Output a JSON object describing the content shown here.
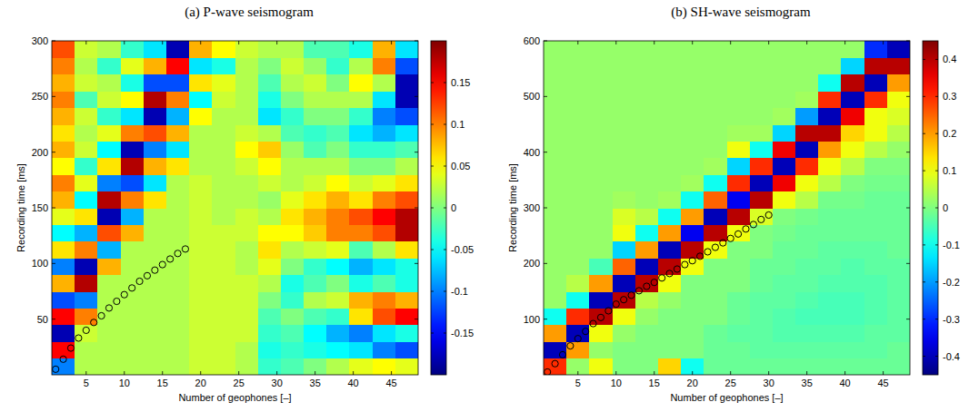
{
  "chart_data": [
    {
      "type": "heatmap",
      "title": "(a) P-wave seismogram",
      "x_label": "Number of geophones [–]",
      "y_label": "Recording time [ms]",
      "xlim": [
        0.5,
        48.5
      ],
      "xticks": [
        5,
        10,
        15,
        20,
        25,
        30,
        35,
        40,
        45
      ],
      "ylim": [
        0,
        300
      ],
      "yticks": [
        50,
        100,
        150,
        200,
        250,
        300
      ],
      "x": [
        2,
        5,
        8,
        11,
        14,
        17,
        20,
        23,
        26,
        29,
        32,
        35,
        38,
        41,
        44,
        47
      ],
      "y": [
        7.5,
        22.5,
        37.5,
        52.5,
        67.5,
        82.5,
        97.5,
        112.5,
        127.5,
        142.5,
        157.5,
        172.5,
        187.5,
        202.5,
        217.5,
        232.5,
        247.5,
        262.5,
        277.5,
        292.5
      ],
      "values": [
        [
          -0.1,
          0.15,
          -0.18,
          0.15,
          -0.12,
          0.08,
          -0.1,
          0.06,
          -0.05,
          0.04,
          0.08,
          0.1,
          0.05,
          0.08,
          0.06,
          0.08,
          0.1,
          0.08,
          0.1,
          0.12
        ],
        [
          0.02,
          0.02,
          0.03,
          0.1,
          -0.1,
          0.18,
          -0.18,
          0.1,
          -0.08,
          0.06,
          -0.05,
          0.04,
          -0.03,
          0.03,
          0.02,
          0.03,
          -0.02,
          0.03,
          0.02,
          0.03
        ],
        [
          0.02,
          0.02,
          0.02,
          0.02,
          0.02,
          0.02,
          0.08,
          -0.08,
          0.12,
          -0.18,
          0.18,
          -0.1,
          0.06,
          -0.05,
          0.04,
          -0.03,
          0.03,
          0.02,
          -0.03,
          0.02
        ],
        [
          0.02,
          0.02,
          0.02,
          0.02,
          0.02,
          0.02,
          0.02,
          0.02,
          0.08,
          -0.08,
          0.1,
          -0.12,
          0.18,
          -0.18,
          0.1,
          -0.06,
          0.05,
          -0.04,
          0.04,
          -0.03
        ],
        [
          0.02,
          0.02,
          0.02,
          0.02,
          0.02,
          0.02,
          0.02,
          0.02,
          0.02,
          0.02,
          0.06,
          -0.06,
          0.08,
          -0.1,
          0.12,
          -0.18,
          0.18,
          -0.12,
          0.08,
          -0.06
        ],
        [
          0.02,
          0.02,
          0.02,
          0.02,
          0.02,
          0.02,
          0.02,
          0.02,
          0.02,
          0.02,
          0.02,
          0.02,
          0.06,
          -0.06,
          0.08,
          -0.08,
          0.1,
          -0.12,
          0.15,
          -0.18
        ],
        [
          0.03,
          0.03,
          0.03,
          0.03,
          0.03,
          0.03,
          0.03,
          0.03,
          0.03,
          0.03,
          0.03,
          0.03,
          0.02,
          0.02,
          0.02,
          0.05,
          -0.05,
          0.06,
          -0.06,
          0.08
        ],
        [
          0.03,
          0.03,
          0.03,
          0.03,
          0.03,
          0.03,
          0.03,
          0.03,
          0.03,
          0.02,
          0.02,
          0.02,
          0.02,
          0.02,
          0.02,
          0.02,
          0.03,
          0.04,
          -0.04,
          0.05
        ],
        [
          0.02,
          0.02,
          0.03,
          0.03,
          0.03,
          0.03,
          0.02,
          0.02,
          0.03,
          0.03,
          0.02,
          0.02,
          0.03,
          0.05,
          0.03,
          0.02,
          0.02,
          0.02,
          0.02,
          0.03
        ],
        [
          -0.03,
          -0.04,
          -0.03,
          -0.02,
          0.0,
          0.02,
          0.04,
          0.06,
          0.05,
          0.02,
          0.01,
          0.03,
          0.05,
          0.07,
          0.02,
          -0.06,
          -0.04,
          -0.02,
          0.0,
          0.02
        ],
        [
          -0.02,
          -0.03,
          -0.02,
          0.0,
          -0.03,
          -0.04,
          0.0,
          0.02,
          0.05,
          0.06,
          0.04,
          0.02,
          0.02,
          0.01,
          -0.02,
          -0.03,
          0.0,
          0.02,
          0.03,
          0.02
        ],
        [
          0.0,
          -0.04,
          -0.05,
          -0.02,
          0.02,
          -0.02,
          -0.03,
          0.03,
          0.07,
          0.08,
          0.06,
          0.03,
          0.02,
          -0.02,
          -0.03,
          0.0,
          0.02,
          0.03,
          0.01,
          -0.02
        ],
        [
          0.02,
          -0.05,
          -0.08,
          -0.03,
          0.03,
          0.0,
          -0.05,
          0.04,
          0.1,
          0.1,
          0.08,
          0.05,
          0.02,
          0.0,
          -0.02,
          0.0,
          0.02,
          0.0,
          -0.03,
          -0.02
        ],
        [
          0.04,
          -0.06,
          -0.1,
          0.06,
          0.08,
          -0.04,
          -0.08,
          -0.02,
          0.1,
          0.12,
          0.06,
          0.03,
          0.0,
          -0.03,
          -0.06,
          -0.03,
          0.02,
          0.05,
          0.02,
          -0.04
        ],
        [
          0.05,
          -0.1,
          -0.06,
          0.12,
          0.1,
          -0.02,
          -0.06,
          0.02,
          0.12,
          0.15,
          0.1,
          0.04,
          0.0,
          -0.03,
          -0.08,
          -0.1,
          -0.06,
          0.02,
          0.1,
          0.08
        ],
        [
          0.04,
          -0.12,
          -0.04,
          0.15,
          0.08,
          -0.04,
          -0.04,
          0.06,
          0.18,
          0.18,
          0.12,
          0.06,
          0.02,
          -0.02,
          -0.06,
          -0.12,
          -0.18,
          -0.18,
          -0.12,
          -0.06
        ]
      ],
      "colorbar": {
        "lim": [
          -0.2,
          0.2
        ],
        "ticks": [
          -0.15,
          -0.1,
          -0.05,
          0,
          0.05,
          0.1,
          0.15
        ]
      },
      "picks": {
        "marker": "circle",
        "color": "#000000",
        "x": [
          1,
          2,
          3,
          4,
          5,
          6,
          7,
          8,
          9,
          10,
          11,
          12,
          13,
          14,
          15,
          16,
          17,
          18
        ],
        "values": [
          5,
          14,
          24,
          33,
          40,
          47,
          53,
          60,
          66,
          72,
          78,
          84,
          89,
          94,
          99,
          104,
          109,
          113
        ]
      }
    },
    {
      "type": "heatmap",
      "title": "(b) SH-wave seismogram",
      "x_label": "Number of geophones [–]",
      "y_label": "Recording time [ms]",
      "xlim": [
        0.5,
        48.5
      ],
      "xticks": [
        5,
        10,
        15,
        20,
        25,
        30,
        35,
        40,
        45
      ],
      "ylim": [
        0,
        600
      ],
      "yticks": [
        100,
        200,
        300,
        400,
        500,
        600
      ],
      "x": [
        2,
        5,
        8,
        11,
        14,
        17,
        20,
        23,
        26,
        29,
        32,
        35,
        38,
        41,
        44,
        47
      ],
      "y": [
        15,
        45,
        75,
        105,
        135,
        165,
        195,
        225,
        255,
        285,
        315,
        345,
        375,
        405,
        435,
        465,
        495,
        525,
        555,
        585
      ],
      "values": [
        [
          0.3,
          -0.4,
          0.2,
          -0.1,
          0.02,
          0.02,
          0.02,
          0.02,
          0.02,
          0.02,
          0.02,
          0.02,
          0.02,
          0.02,
          0.02,
          0.02,
          0.02,
          0.02,
          0.02,
          0.02
        ],
        [
          0.02,
          0.2,
          -0.4,
          0.3,
          -0.1,
          0.05,
          0.02,
          0.02,
          0.02,
          0.02,
          0.02,
          0.02,
          0.02,
          0.02,
          0.02,
          0.02,
          0.02,
          0.02,
          0.02,
          0.02
        ],
        [
          0.1,
          0.02,
          0.1,
          0.4,
          -0.4,
          0.2,
          -0.05,
          0.02,
          0.02,
          0.02,
          0.02,
          0.02,
          0.02,
          0.02,
          0.02,
          0.02,
          0.02,
          0.02,
          0.02,
          0.02
        ],
        [
          0.0,
          0.0,
          0.02,
          0.1,
          0.4,
          -0.4,
          0.25,
          -0.15,
          0.1,
          0.08,
          0.03,
          0.02,
          0.02,
          0.02,
          0.02,
          0.02,
          0.02,
          0.02,
          0.02,
          0.02
        ],
        [
          0.0,
          0.0,
          0.0,
          0.02,
          0.05,
          0.4,
          -0.4,
          0.2,
          -0.1,
          0.05,
          0.02,
          0.02,
          0.02,
          0.02,
          0.02,
          0.02,
          0.02,
          0.02,
          0.02,
          0.02
        ],
        [
          0.15,
          0.0,
          0.0,
          0.0,
          0.02,
          0.1,
          0.4,
          -0.4,
          0.2,
          -0.1,
          0.03,
          0.02,
          0.02,
          0.02,
          0.02,
          0.02,
          0.02,
          0.02,
          0.02,
          0.02
        ],
        [
          -0.1,
          0.0,
          0.0,
          0.0,
          0.0,
          0.0,
          0.1,
          0.4,
          -0.35,
          0.2,
          -0.1,
          0.03,
          0.02,
          0.02,
          0.02,
          0.02,
          0.02,
          0.02,
          0.02,
          0.02
        ],
        [
          -0.02,
          -0.02,
          -0.02,
          0.0,
          0.0,
          0.0,
          0.0,
          0.1,
          0.4,
          -0.4,
          0.25,
          -0.1,
          0.03,
          0.02,
          0.02,
          0.02,
          0.02,
          0.02,
          0.02,
          0.02
        ],
        [
          -0.02,
          -0.02,
          -0.03,
          -0.02,
          -0.02,
          0.0,
          0.0,
          0.0,
          0.1,
          0.4,
          -0.35,
          0.3,
          -0.15,
          0.1,
          0.03,
          0.02,
          0.02,
          0.02,
          0.02,
          0.02
        ],
        [
          -0.02,
          -0.03,
          -0.03,
          -0.03,
          -0.03,
          -0.02,
          -0.02,
          0.0,
          0.0,
          0.08,
          0.4,
          -0.4,
          0.3,
          -0.1,
          0.03,
          0.02,
          0.02,
          0.02,
          0.02,
          0.02
        ],
        [
          -0.02,
          -0.03,
          -0.04,
          -0.04,
          -0.03,
          -0.03,
          -0.02,
          -0.02,
          -0.01,
          0.0,
          0.1,
          0.35,
          -0.4,
          0.35,
          -0.15,
          0.03,
          0.02,
          0.02,
          0.02,
          0.02
        ],
        [
          -0.02,
          -0.03,
          -0.04,
          -0.05,
          -0.04,
          -0.03,
          -0.03,
          -0.02,
          -0.02,
          -0.01,
          0.05,
          0.1,
          0.3,
          -0.4,
          0.4,
          -0.2,
          0.03,
          0.02,
          0.02,
          0.02
        ],
        [
          -0.02,
          -0.03,
          -0.04,
          -0.05,
          -0.05,
          -0.04,
          -0.03,
          -0.03,
          -0.02,
          -0.02,
          -0.01,
          0.05,
          0.1,
          0.2,
          0.4,
          -0.4,
          0.3,
          -0.1,
          0.02,
          0.02
        ],
        [
          -0.02,
          -0.03,
          -0.04,
          -0.05,
          -0.05,
          -0.04,
          -0.04,
          -0.03,
          -0.02,
          -0.02,
          -0.01,
          0.0,
          0.05,
          0.1,
          0.15,
          0.35,
          -0.4,
          0.4,
          -0.15,
          0.02
        ],
        [
          -0.02,
          -0.03,
          -0.03,
          -0.04,
          -0.04,
          -0.04,
          -0.03,
          -0.03,
          -0.02,
          -0.02,
          -0.02,
          -0.01,
          0.0,
          0.05,
          0.1,
          0.1,
          0.3,
          -0.4,
          0.4,
          -0.3
        ],
        [
          -0.02,
          -0.02,
          -0.03,
          -0.03,
          -0.03,
          -0.03,
          -0.03,
          -0.02,
          -0.02,
          -0.02,
          -0.02,
          -0.01,
          0.0,
          0.02,
          0.05,
          0.08,
          0.1,
          0.2,
          0.4,
          -0.4
        ]
      ],
      "colorbar": {
        "lim": [
          -0.45,
          0.45
        ],
        "ticks": [
          -0.4,
          -0.3,
          -0.2,
          -0.1,
          0,
          0.1,
          0.2,
          0.3,
          0.4
        ]
      },
      "picks": {
        "marker": "circle",
        "color": "#000000",
        "x": [
          1,
          2,
          3,
          4,
          5,
          6,
          7,
          8,
          9,
          10,
          11,
          12,
          13,
          14,
          15,
          16,
          17,
          18,
          19,
          20,
          21,
          22,
          23,
          24,
          25,
          26,
          27,
          28,
          29,
          30
        ],
        "values": [
          5,
          20,
          36,
          52,
          65,
          78,
          92,
          103,
          115,
          127,
          135,
          143,
          151,
          159,
          166,
          174,
          182,
          190,
          198,
          205,
          213,
          221,
          229,
          237,
          245,
          253,
          262,
          270,
          279,
          287
        ]
      }
    }
  ]
}
